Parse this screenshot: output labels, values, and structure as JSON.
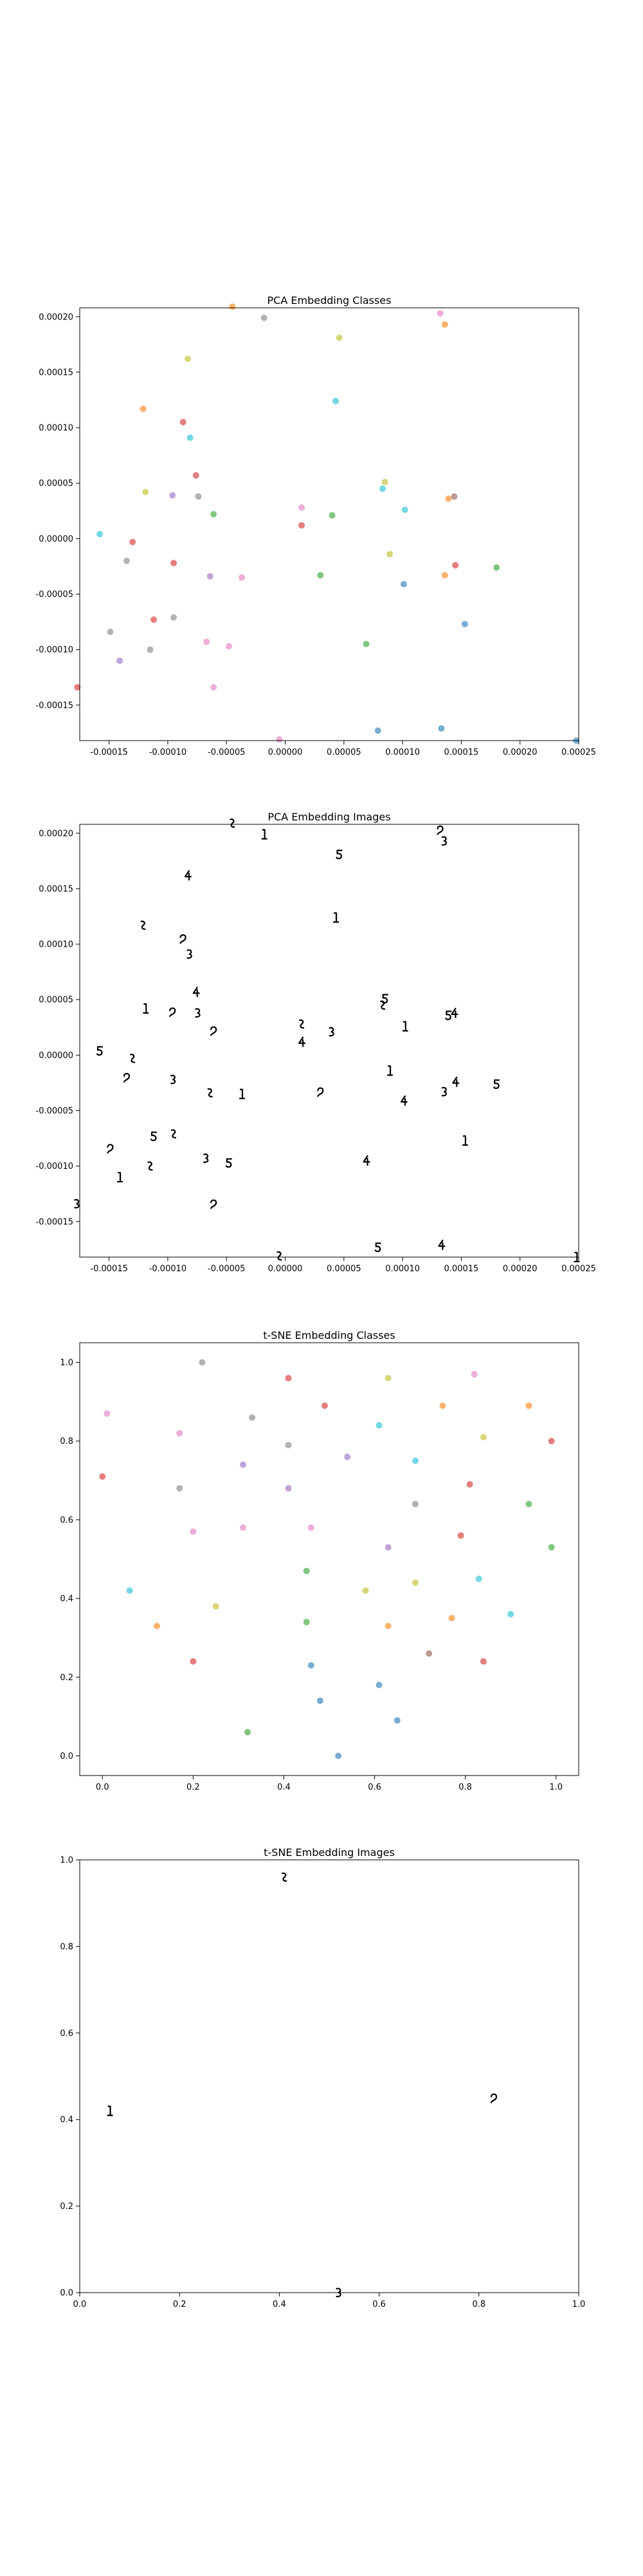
{
  "chart_data": [
    {
      "type": "scatter",
      "title": "PCA Embedding Classes",
      "xlim": [
        -0.000175,
        0.00025
      ],
      "ylim": [
        -0.000182,
        0.000208
      ],
      "xticks": [
        -0.00015,
        -0.0001,
        -5e-05,
        0.0,
        5e-05,
        0.0001,
        0.00015,
        0.0002,
        0.00025
      ],
      "xtick_labels": [
        "-0.00015",
        "-0.00010",
        "-0.00005",
        "0.00000",
        "0.00005",
        "0.00010",
        "0.00015",
        "0.00020",
        "0.00025"
      ],
      "yticks": [
        -0.00015,
        -0.0001,
        -5e-05,
        0.0,
        5e-05,
        0.0001,
        0.00015,
        0.0002
      ],
      "ytick_labels": [
        "-0.00015",
        "-0.00010",
        "-0.00005",
        "0.00000",
        "0.00005",
        "0.00010",
        "0.00015",
        "0.00020"
      ],
      "points": [
        {
          "x": -4.5e-05,
          "y": 0.000209,
          "color": "#ff7f0e"
        },
        {
          "x": -1.8e-05,
          "y": 0.000199,
          "color": "#7f7f7f"
        },
        {
          "x": 0.000132,
          "y": 0.000203,
          "color": "#e377c2"
        },
        {
          "x": 0.000136,
          "y": 0.000193,
          "color": "#ff7f0e"
        },
        {
          "x": -8.3e-05,
          "y": 0.000162,
          "color": "#bcbd22"
        },
        {
          "x": 4.6e-05,
          "y": 0.000181,
          "color": "#bcbd22"
        },
        {
          "x": -0.000121,
          "y": 0.000117,
          "color": "#ff7f0e"
        },
        {
          "x": 4.3e-05,
          "y": 0.000124,
          "color": "#17becf"
        },
        {
          "x": -8.7e-05,
          "y": 0.000105,
          "color": "#d62728"
        },
        {
          "x": -8.1e-05,
          "y": 9.1e-05,
          "color": "#17becf"
        },
        {
          "x": -7.6e-05,
          "y": 5.7e-05,
          "color": "#d62728"
        },
        {
          "x": 8.5e-05,
          "y": 5.1e-05,
          "color": "#bcbd22"
        },
        {
          "x": 8.3e-05,
          "y": 4.5e-05,
          "color": "#17becf"
        },
        {
          "x": -0.000119,
          "y": 4.2e-05,
          "color": "#bcbd22"
        },
        {
          "x": -9.6e-05,
          "y": 3.9e-05,
          "color": "#9467bd"
        },
        {
          "x": -7.4e-05,
          "y": 3.8e-05,
          "color": "#7f7f7f"
        },
        {
          "x": 0.000144,
          "y": 3.8e-05,
          "color": "#8c564b"
        },
        {
          "x": 0.000139,
          "y": 3.6e-05,
          "color": "#ff7f0e"
        },
        {
          "x": 1.4e-05,
          "y": 2.8e-05,
          "color": "#e377c2"
        },
        {
          "x": 0.000102,
          "y": 2.6e-05,
          "color": "#17becf"
        },
        {
          "x": -6.1e-05,
          "y": 2.2e-05,
          "color": "#2ca02c"
        },
        {
          "x": 4e-05,
          "y": 2.1e-05,
          "color": "#2ca02c"
        },
        {
          "x": 1.4e-05,
          "y": 1.2e-05,
          "color": "#d62728"
        },
        {
          "x": -0.000158,
          "y": 4e-06,
          "color": "#17becf"
        },
        {
          "x": -0.00013,
          "y": -3e-06,
          "color": "#d62728"
        },
        {
          "x": 8.9e-05,
          "y": -1.4e-05,
          "color": "#bcbd22"
        },
        {
          "x": -0.000135,
          "y": -2e-05,
          "color": "#7f7f7f"
        },
        {
          "x": -9.5e-05,
          "y": -2.2e-05,
          "color": "#d62728"
        },
        {
          "x": 0.000145,
          "y": -2.4e-05,
          "color": "#d62728"
        },
        {
          "x": 0.00018,
          "y": -2.6e-05,
          "color": "#2ca02c"
        },
        {
          "x": -6.4e-05,
          "y": -3.4e-05,
          "color": "#9467bd"
        },
        {
          "x": -3.7e-05,
          "y": -3.5e-05,
          "color": "#e377c2"
        },
        {
          "x": 3e-05,
          "y": -3.3e-05,
          "color": "#2ca02c"
        },
        {
          "x": 0.000136,
          "y": -3.3e-05,
          "color": "#ff7f0e"
        },
        {
          "x": 0.000101,
          "y": -4.1e-05,
          "color": "#1f77b4"
        },
        {
          "x": -0.000112,
          "y": -7.3e-05,
          "color": "#d62728"
        },
        {
          "x": -9.5e-05,
          "y": -7.1e-05,
          "color": "#7f7f7f"
        },
        {
          "x": 0.000153,
          "y": -7.7e-05,
          "color": "#1f77b4"
        },
        {
          "x": -0.000149,
          "y": -8.4e-05,
          "color": "#7f7f7f"
        },
        {
          "x": -6.7e-05,
          "y": -9.3e-05,
          "color": "#e377c2"
        },
        {
          "x": 6.9e-05,
          "y": -9.5e-05,
          "color": "#2ca02c"
        },
        {
          "x": -4.8e-05,
          "y": -9.7e-05,
          "color": "#e377c2"
        },
        {
          "x": -0.000115,
          "y": -0.0001,
          "color": "#7f7f7f"
        },
        {
          "x": -0.000141,
          "y": -0.00011,
          "color": "#9467bd"
        },
        {
          "x": -6.1e-05,
          "y": -0.000134,
          "color": "#e377c2"
        },
        {
          "x": -0.000177,
          "y": -0.000134,
          "color": "#d62728"
        },
        {
          "x": 0.000133,
          "y": -0.000171,
          "color": "#1f77b4"
        },
        {
          "x": 7.9e-05,
          "y": -0.000173,
          "color": "#1f77b4"
        },
        {
          "x": -5e-06,
          "y": -0.000181,
          "color": "#e377c2"
        },
        {
          "x": 0.000248,
          "y": -0.000182,
          "color": "#1f77b4"
        }
      ]
    },
    {
      "type": "scatter",
      "title": "PCA Embedding Images",
      "xlim": [
        -0.000175,
        0.00025
      ],
      "ylim": [
        -0.000182,
        0.000208
      ],
      "xticks": [
        -0.00015,
        -0.0001,
        -5e-05,
        0.0,
        5e-05,
        0.0001,
        0.00015,
        0.0002,
        0.00025
      ],
      "xtick_labels": [
        "-0.00015",
        "-0.00010",
        "-0.00005",
        "0.00000",
        "0.00005",
        "0.00010",
        "0.00015",
        "0.00020",
        "0.00025"
      ],
      "yticks": [
        -0.00015,
        -0.0001,
        -5e-05,
        0.0,
        5e-05,
        0.0001,
        0.00015,
        0.0002
      ],
      "ytick_labels": [
        "-0.00015",
        "-0.00010",
        "-0.00005",
        "0.00000",
        "0.00005",
        "0.00010",
        "0.00015",
        "0.00020"
      ],
      "points": [
        {
          "x": -4.5e-05,
          "y": 0.000209
        },
        {
          "x": -1.8e-05,
          "y": 0.000199
        },
        {
          "x": 0.000132,
          "y": 0.000203
        },
        {
          "x": 0.000136,
          "y": 0.000193
        },
        {
          "x": -8.3e-05,
          "y": 0.000162
        },
        {
          "x": 4.6e-05,
          "y": 0.000181
        },
        {
          "x": -0.000121,
          "y": 0.000117
        },
        {
          "x": 4.3e-05,
          "y": 0.000124
        },
        {
          "x": -8.7e-05,
          "y": 0.000105
        },
        {
          "x": -8.1e-05,
          "y": 9.1e-05
        },
        {
          "x": -7.6e-05,
          "y": 5.7e-05
        },
        {
          "x": 8.5e-05,
          "y": 5.1e-05
        },
        {
          "x": 8.3e-05,
          "y": 4.5e-05
        },
        {
          "x": -0.000119,
          "y": 4.2e-05
        },
        {
          "x": -9.6e-05,
          "y": 3.9e-05
        },
        {
          "x": -7.4e-05,
          "y": 3.8e-05
        },
        {
          "x": 0.000144,
          "y": 3.8e-05
        },
        {
          "x": 0.000139,
          "y": 3.6e-05
        },
        {
          "x": 1.4e-05,
          "y": 2.8e-05
        },
        {
          "x": 0.000102,
          "y": 2.6e-05
        },
        {
          "x": -6.1e-05,
          "y": 2.2e-05
        },
        {
          "x": 4e-05,
          "y": 2.1e-05
        },
        {
          "x": 1.4e-05,
          "y": 1.2e-05
        },
        {
          "x": -0.000158,
          "y": 4e-06
        },
        {
          "x": -0.00013,
          "y": -3e-06
        },
        {
          "x": 8.9e-05,
          "y": -1.4e-05
        },
        {
          "x": -0.000135,
          "y": -2e-05
        },
        {
          "x": -9.5e-05,
          "y": -2.2e-05
        },
        {
          "x": 0.000145,
          "y": -2.4e-05
        },
        {
          "x": 0.00018,
          "y": -2.6e-05
        },
        {
          "x": -6.4e-05,
          "y": -3.4e-05
        },
        {
          "x": -3.7e-05,
          "y": -3.5e-05
        },
        {
          "x": 3e-05,
          "y": -3.3e-05
        },
        {
          "x": 0.000136,
          "y": -3.3e-05
        },
        {
          "x": 0.000101,
          "y": -4.1e-05
        },
        {
          "x": -0.000112,
          "y": -7.3e-05
        },
        {
          "x": -9.5e-05,
          "y": -7.1e-05
        },
        {
          "x": 0.000153,
          "y": -7.7e-05
        },
        {
          "x": -0.000149,
          "y": -8.4e-05
        },
        {
          "x": -6.7e-05,
          "y": -9.3e-05
        },
        {
          "x": 6.9e-05,
          "y": -9.5e-05
        },
        {
          "x": -4.8e-05,
          "y": -9.7e-05
        },
        {
          "x": -0.000115,
          "y": -0.0001
        },
        {
          "x": -0.000141,
          "y": -0.00011
        },
        {
          "x": -6.1e-05,
          "y": -0.000134
        },
        {
          "x": -0.000177,
          "y": -0.000134
        },
        {
          "x": 0.000133,
          "y": -0.000171
        },
        {
          "x": 7.9e-05,
          "y": -0.000173
        },
        {
          "x": -5e-06,
          "y": -0.000181
        },
        {
          "x": 0.000248,
          "y": -0.000182
        }
      ]
    },
    {
      "type": "scatter",
      "title": "t-SNE Embedding Classes",
      "xlim": [
        -0.05,
        1.05
      ],
      "ylim": [
        -0.05,
        1.05
      ],
      "xticks": [
        0.0,
        0.2,
        0.4,
        0.6,
        0.8,
        1.0
      ],
      "xtick_labels": [
        "0.0",
        "0.2",
        "0.4",
        "0.6",
        "0.8",
        "1.0"
      ],
      "yticks": [
        0.0,
        0.2,
        0.4,
        0.6,
        0.8,
        1.0
      ],
      "ytick_labels": [
        "0.0",
        "0.2",
        "0.4",
        "0.6",
        "0.8",
        "1.0"
      ],
      "points": [
        {
          "x": 0.22,
          "y": 1.0,
          "color": "#7f7f7f"
        },
        {
          "x": 0.82,
          "y": 0.97,
          "color": "#e377c2"
        },
        {
          "x": 0.41,
          "y": 0.96,
          "color": "#d62728"
        },
        {
          "x": 0.63,
          "y": 0.96,
          "color": "#bcbd22"
        },
        {
          "x": 0.49,
          "y": 0.89,
          "color": "#d62728"
        },
        {
          "x": 0.75,
          "y": 0.89,
          "color": "#ff7f0e"
        },
        {
          "x": 0.94,
          "y": 0.89,
          "color": "#ff7f0e"
        },
        {
          "x": 0.01,
          "y": 0.87,
          "color": "#e377c2"
        },
        {
          "x": 0.33,
          "y": 0.86,
          "color": "#7f7f7f"
        },
        {
          "x": 0.61,
          "y": 0.84,
          "color": "#17becf"
        },
        {
          "x": 0.17,
          "y": 0.82,
          "color": "#e377c2"
        },
        {
          "x": 0.84,
          "y": 0.81,
          "color": "#bcbd22"
        },
        {
          "x": 0.41,
          "y": 0.79,
          "color": "#7f7f7f"
        },
        {
          "x": 0.99,
          "y": 0.8,
          "color": "#d62728"
        },
        {
          "x": 0.54,
          "y": 0.76,
          "color": "#9467bd"
        },
        {
          "x": 0.69,
          "y": 0.75,
          "color": "#17becf"
        },
        {
          "x": 0.31,
          "y": 0.74,
          "color": "#9467bd"
        },
        {
          "x": 0.0,
          "y": 0.71,
          "color": "#d62728"
        },
        {
          "x": 0.81,
          "y": 0.69,
          "color": "#d62728"
        },
        {
          "x": 0.17,
          "y": 0.68,
          "color": "#7f7f7f"
        },
        {
          "x": 0.41,
          "y": 0.68,
          "color": "#9467bd"
        },
        {
          "x": 0.69,
          "y": 0.64,
          "color": "#7f7f7f"
        },
        {
          "x": 0.94,
          "y": 0.64,
          "color": "#2ca02c"
        },
        {
          "x": 0.31,
          "y": 0.58,
          "color": "#e377c2"
        },
        {
          "x": 0.46,
          "y": 0.58,
          "color": "#e377c2"
        },
        {
          "x": 0.2,
          "y": 0.57,
          "color": "#e377c2"
        },
        {
          "x": 0.79,
          "y": 0.56,
          "color": "#d62728"
        },
        {
          "x": 0.63,
          "y": 0.53,
          "color": "#9467bd"
        },
        {
          "x": 0.99,
          "y": 0.53,
          "color": "#2ca02c"
        },
        {
          "x": 0.45,
          "y": 0.47,
          "color": "#2ca02c"
        },
        {
          "x": 0.83,
          "y": 0.45,
          "color": "#17becf"
        },
        {
          "x": 0.69,
          "y": 0.44,
          "color": "#bcbd22"
        },
        {
          "x": 0.06,
          "y": 0.42,
          "color": "#17becf"
        },
        {
          "x": 0.58,
          "y": 0.42,
          "color": "#bcbd22"
        },
        {
          "x": 0.25,
          "y": 0.38,
          "color": "#bcbd22"
        },
        {
          "x": 0.9,
          "y": 0.36,
          "color": "#17becf"
        },
        {
          "x": 0.77,
          "y": 0.35,
          "color": "#ff7f0e"
        },
        {
          "x": 0.45,
          "y": 0.34,
          "color": "#2ca02c"
        },
        {
          "x": 0.63,
          "y": 0.33,
          "color": "#ff7f0e"
        },
        {
          "x": 0.12,
          "y": 0.33,
          "color": "#ff7f0e"
        },
        {
          "x": 0.72,
          "y": 0.26,
          "color": "#8c564b"
        },
        {
          "x": 0.84,
          "y": 0.24,
          "color": "#d62728"
        },
        {
          "x": 0.2,
          "y": 0.24,
          "color": "#d62728"
        },
        {
          "x": 0.46,
          "y": 0.23,
          "color": "#1f77b4"
        },
        {
          "x": 0.61,
          "y": 0.18,
          "color": "#1f77b4"
        },
        {
          "x": 0.48,
          "y": 0.14,
          "color": "#1f77b4"
        },
        {
          "x": 0.65,
          "y": 0.09,
          "color": "#1f77b4"
        },
        {
          "x": 0.32,
          "y": 0.06,
          "color": "#2ca02c"
        },
        {
          "x": 0.52,
          "y": 0.0,
          "color": "#1f77b4"
        }
      ]
    },
    {
      "type": "scatter",
      "title": "t-SNE Embedding Images",
      "xlim": [
        0.0,
        1.0
      ],
      "ylim": [
        0.0,
        1.0
      ],
      "xticks": [
        0.0,
        0.2,
        0.4,
        0.6,
        0.8,
        1.0
      ],
      "xtick_labels": [
        "0.0",
        "0.2",
        "0.4",
        "0.6",
        "0.8",
        "1.0"
      ],
      "yticks": [
        0.0,
        0.2,
        0.4,
        0.6,
        0.8,
        1.0
      ],
      "ytick_labels": [
        "0.0",
        "0.2",
        "0.4",
        "0.6",
        "0.8",
        "1.0"
      ],
      "points": [
        {
          "x": 0.41,
          "y": 0.96
        },
        {
          "x": 0.06,
          "y": 0.42
        },
        {
          "x": 0.83,
          "y": 0.45
        },
        {
          "x": 0.52,
          "y": 0.0
        }
      ]
    }
  ]
}
